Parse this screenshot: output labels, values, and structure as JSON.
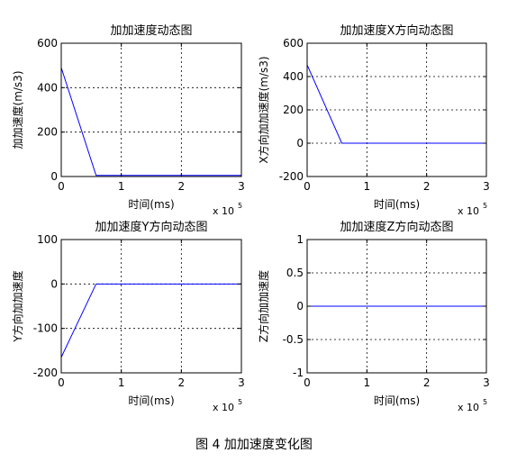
{
  "figure_caption": "图 4  加加速度变化图",
  "chart_data": [
    {
      "type": "line",
      "title": "加加速度动态图",
      "xlabel": "时间(ms)",
      "ylabel": "加加速度(m/s3)",
      "x_exponent_label": "x 10",
      "x_exponent_power": "5",
      "xlim": [
        0,
        3
      ],
      "ylim": [
        0,
        600
      ],
      "xticks": [
        "0",
        "1",
        "2",
        "3"
      ],
      "yticks": [
        "0",
        "200",
        "400",
        "600"
      ],
      "ytick_values": [
        0,
        200,
        400,
        600
      ],
      "xtick_values": [
        0,
        1,
        2,
        3
      ],
      "grid": true,
      "line_color": "#0000ff",
      "series": [
        {
          "x": [
            0,
            0.58,
            3
          ],
          "y": [
            490,
            5,
            5
          ]
        }
      ]
    },
    {
      "type": "line",
      "title": "加加速度X方向动态图",
      "xlabel": "时间(ms)",
      "ylabel": "X方向加加速度(m/s3)",
      "x_exponent_label": "x 10",
      "x_exponent_power": "5",
      "xlim": [
        0,
        3
      ],
      "ylim": [
        -200,
        600
      ],
      "xticks": [
        "0",
        "1",
        "2",
        "3"
      ],
      "yticks": [
        "-200",
        "0",
        "200",
        "400",
        "600"
      ],
      "ytick_values": [
        -200,
        0,
        200,
        400,
        600
      ],
      "xtick_values": [
        0,
        1,
        2,
        3
      ],
      "grid": true,
      "line_color": "#0000ff",
      "series": [
        {
          "x": [
            0,
            0.58,
            3
          ],
          "y": [
            470,
            0,
            0
          ]
        }
      ]
    },
    {
      "type": "line",
      "title": "加加速度Y方向动态图",
      "xlabel": "时间(ms)",
      "ylabel": "Y方向加加速度",
      "x_exponent_label": "x 10",
      "x_exponent_power": "5",
      "xlim": [
        0,
        3
      ],
      "ylim": [
        -200,
        100
      ],
      "xticks": [
        "0",
        "1",
        "2",
        "3"
      ],
      "yticks": [
        "-200",
        "-100",
        "0",
        "100"
      ],
      "ytick_values": [
        -200,
        -100,
        0,
        100
      ],
      "xtick_values": [
        0,
        1,
        2,
        3
      ],
      "grid": true,
      "line_color": "#0000ff",
      "series": [
        {
          "x": [
            0,
            0.58,
            3
          ],
          "y": [
            -165,
            0,
            0
          ]
        }
      ]
    },
    {
      "type": "line",
      "title": "加加速度Z方向动态图",
      "xlabel": "时间(ms)",
      "ylabel": "Z方向加加速度",
      "x_exponent_label": "x 10",
      "x_exponent_power": "5",
      "xlim": [
        0,
        3
      ],
      "ylim": [
        -1,
        1
      ],
      "xticks": [
        "0",
        "1",
        "2",
        "3"
      ],
      "yticks": [
        "-1",
        "-0.5",
        "0",
        "0.5",
        "1"
      ],
      "ytick_values": [
        -1,
        -0.5,
        0,
        0.5,
        1
      ],
      "xtick_values": [
        0,
        1,
        2,
        3
      ],
      "grid": true,
      "line_color": "#0000ff",
      "series": [
        {
          "x": [
            0,
            3
          ],
          "y": [
            0,
            0
          ]
        }
      ]
    }
  ]
}
